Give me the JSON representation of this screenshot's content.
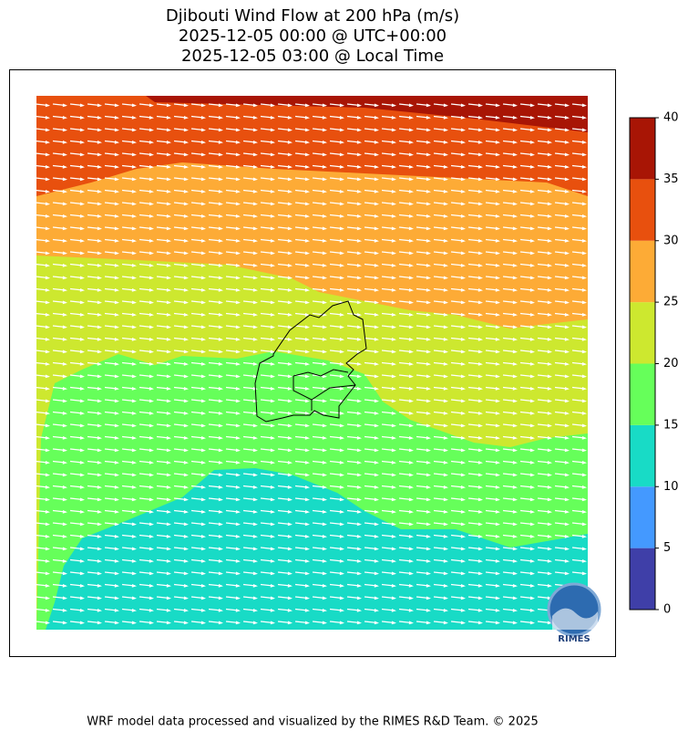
{
  "header": {
    "title_lines": [
      "Djibouti Wind Flow at 200 hPa (m/s)",
      "2025-12-05 00:00 @ UTC+00:00",
      "2025-12-05 03:00 @ Local Time"
    ]
  },
  "colorbar": {
    "ticks": [
      0,
      5,
      10,
      15,
      20,
      25,
      30,
      35,
      40
    ],
    "colors": [
      "#3f3fa8",
      "#4499ff",
      "#18dbc6",
      "#66ff5a",
      "#cde82f",
      "#fdab36",
      "#e8500e",
      "#a81505"
    ]
  },
  "logo": "RIMES",
  "footer": "WRF model data processed and visualized by the RIMES R&D Team. © 2025"
}
